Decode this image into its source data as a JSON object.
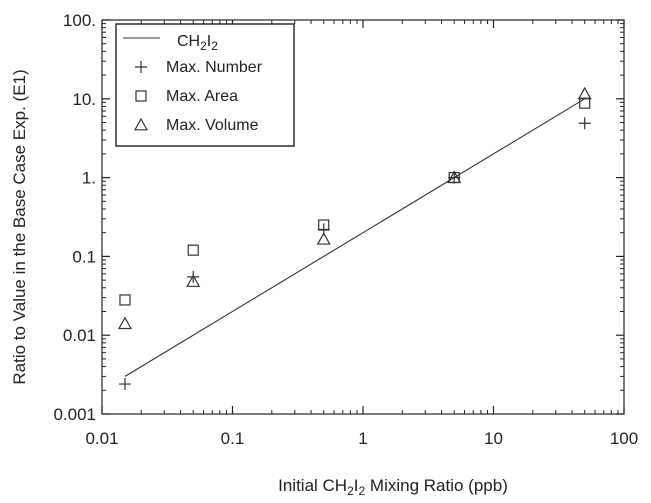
{
  "chart_data": {
    "type": "scatter",
    "xscale": "log",
    "yscale": "log",
    "xlim": [
      0.01,
      100
    ],
    "ylim": [
      0.001,
      100
    ],
    "xticks": [
      0.01,
      0.1,
      1,
      10,
      100
    ],
    "xtick_labels": [
      "0.01",
      "0.1",
      "1",
      "10",
      "100"
    ],
    "yticks": [
      0.001,
      0.01,
      0.1,
      1,
      10,
      100
    ],
    "ytick_labels": [
      "0.001",
      "0.01",
      "0.1",
      "1.",
      "10.",
      "100."
    ],
    "xlabel": {
      "pre": "Initial CH",
      "sub1": "2",
      "mid": "I",
      "sub2": "2",
      "post": " Mixing Ratio (ppb)"
    },
    "ylabel": "Ratio to Value in the Base Case Exp. (E1)",
    "grid": false,
    "legend_position": "top-left",
    "series": [
      {
        "name": {
          "pre": "CH",
          "sub1": "2",
          "mid": "I",
          "sub2": "2"
        },
        "marker": "line",
        "x": [
          0.015,
          50
        ],
        "y": [
          0.003,
          10
        ]
      },
      {
        "name": "Max. Number",
        "marker": "plus",
        "x": [
          0.015,
          0.05,
          0.5,
          5,
          50
        ],
        "y": [
          0.0024,
          0.055,
          0.22,
          1.0,
          4.9
        ]
      },
      {
        "name": "Max. Area",
        "marker": "square",
        "x": [
          0.015,
          0.05,
          0.5,
          5,
          50
        ],
        "y": [
          0.028,
          0.12,
          0.25,
          1.0,
          8.8
        ]
      },
      {
        "name": "Max. Volume",
        "marker": "triangle",
        "x": [
          0.015,
          0.05,
          0.5,
          5,
          50
        ],
        "y": [
          0.014,
          0.048,
          0.165,
          1.0,
          11.5
        ]
      }
    ],
    "color": "#333333"
  }
}
